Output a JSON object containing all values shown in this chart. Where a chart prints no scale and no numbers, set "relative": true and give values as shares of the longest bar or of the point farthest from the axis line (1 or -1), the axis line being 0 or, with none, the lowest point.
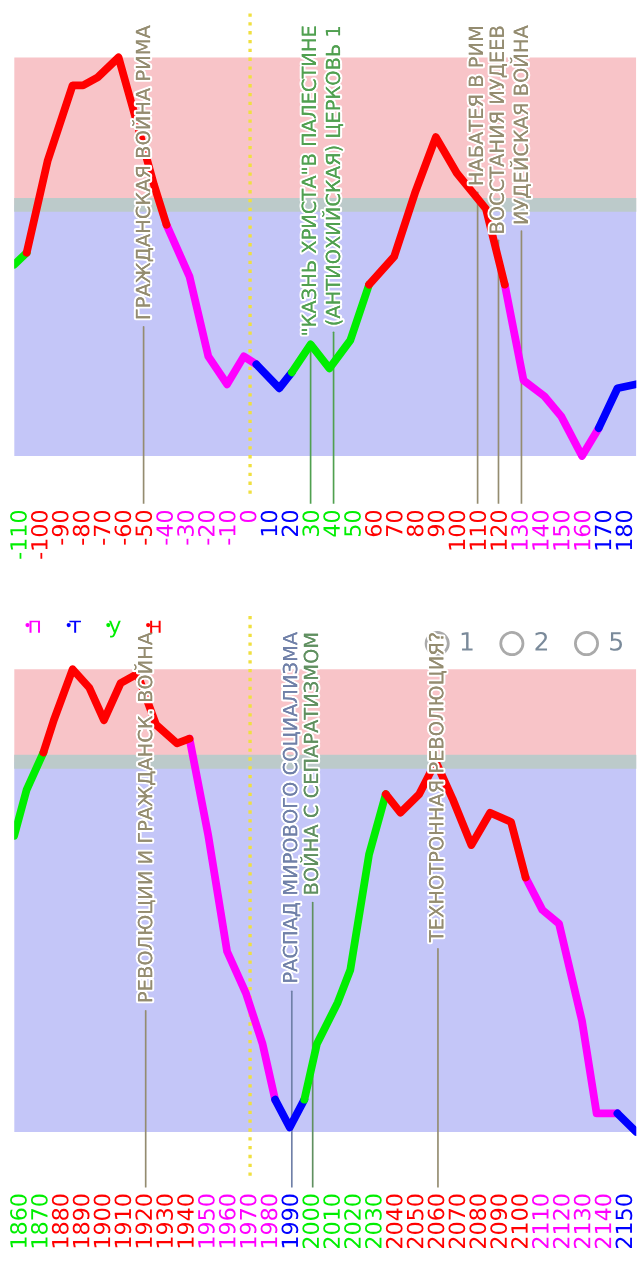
{
  "chart_data": [
    {
      "type": "line",
      "relative": true,
      "x": [
        -113,
        -107,
        -97,
        -85,
        -80,
        -73,
        -63,
        -56,
        -46,
        -40,
        -29,
        -20,
        -11,
        -3,
        3,
        14,
        20,
        29,
        38,
        48,
        57,
        69,
        79,
        89,
        99,
        113,
        122,
        131,
        141,
        149,
        159,
        167,
        176,
        185
      ],
      "xlim": [
        -113,
        185
      ],
      "xticks": [
        -110,
        -100,
        -90,
        -80,
        -70,
        -60,
        -50,
        -40,
        -30,
        -20,
        -10,
        0,
        10,
        20,
        30,
        40,
        50,
        60,
        70,
        80,
        90,
        100,
        110,
        120,
        130,
        140,
        150,
        160,
        170,
        180
      ],
      "series": [
        {
          "color": "#ff00ff",
          "values": [
            null,
            null,
            null,
            null,
            null,
            null,
            null,
            null,
            null,
            0.58,
            0.45,
            0.25,
            0.18,
            0.25,
            0.23,
            null,
            null,
            null,
            null,
            null,
            null,
            null,
            null,
            null,
            null,
            null,
            0.43,
            0.19,
            0.15,
            0.1,
            0,
            0.07,
            null,
            null
          ]
        },
        {
          "color": "#0000ff",
          "values": [
            null,
            null,
            null,
            null,
            null,
            null,
            null,
            null,
            null,
            null,
            null,
            null,
            null,
            null,
            0.23,
            0.17,
            0.21,
            null,
            null,
            null,
            null,
            null,
            null,
            null,
            null,
            null,
            null,
            null,
            null,
            null,
            null,
            0.07,
            0.17,
            0.18
          ]
        },
        {
          "color": "#00ee00",
          "values": [
            0.48,
            0.51,
            null,
            null,
            null,
            null,
            null,
            null,
            null,
            null,
            null,
            null,
            null,
            null,
            null,
            null,
            0.21,
            0.28,
            0.22,
            0.29,
            0.43,
            null,
            null,
            null,
            null,
            null,
            null,
            null,
            null,
            null,
            null,
            null,
            null,
            null
          ]
        },
        {
          "color": "#ff0000",
          "values": [
            null,
            0.51,
            0.74,
            0.93,
            0.93,
            0.95,
            1.0,
            0.87,
            0.68,
            0.58,
            null,
            null,
            null,
            null,
            null,
            null,
            null,
            null,
            null,
            null,
            0.43,
            0.5,
            0.66,
            0.8,
            0.71,
            0.62,
            0.43,
            null,
            null,
            null,
            null,
            null,
            null,
            null
          ]
        }
      ],
      "ref_lines": [
        {
          "axis": "y",
          "value": 0.63,
          "label": null,
          "color": "#bccaca"
        },
        {
          "axis": "x",
          "value": 0,
          "label": null,
          "color": "#f0e040",
          "line_style": "dotted"
        },
        {
          "axis": "x",
          "value": -51,
          "label": "ГРАЖДАНСКАЯ ВОЙНА РИМА",
          "color": "#948c70"
        },
        {
          "axis": "x",
          "value": 29,
          "label": "\"КАЗНЬ ХРИСТА\"В ПАЛЕСТИНЕ",
          "color": "#50a050"
        },
        {
          "axis": "x",
          "value": 40,
          "label": "(АНТИОХИЙСКАЯ) ЦЕРКОВЬ 1",
          "color": "#50a050"
        },
        {
          "axis": "x",
          "value": 109,
          "label": "НАБАТЕЯ В РИМ",
          "color": "#948c70"
        },
        {
          "axis": "x",
          "value": 119,
          "label": "ВОССТАНИЯ ИУДЕЕВ",
          "color": "#948c70"
        },
        {
          "axis": "x",
          "value": 130,
          "label": "ИУДЕЙСКАЯ ВОЙНА",
          "color": "#948c70"
        }
      ],
      "bands": [
        {
          "axis": "y",
          "from": 0.63,
          "to": 1,
          "color": "#f8c4c8"
        },
        {
          "axis": "y",
          "from": 0,
          "to": 0.63,
          "color": "#c4c6f8"
        }
      ],
      "grid": false,
      "legend": false
    },
    {
      "type": "line",
      "relative": true,
      "x": [
        1857,
        1863,
        1871,
        1876,
        1885,
        1893,
        1900,
        1908,
        1916,
        1925,
        1935,
        1941,
        1950,
        1959,
        1968,
        1976,
        1982,
        1989,
        1996,
        2002,
        2012,
        2018,
        2027,
        2035,
        2042,
        2051,
        2059,
        2067,
        2076,
        2085,
        2095,
        2102,
        2110,
        2118,
        2129,
        2136,
        2146,
        2155
      ],
      "xlim": [
        1857,
        2155
      ],
      "xticks": [
        1860,
        1870,
        1880,
        1890,
        1900,
        1910,
        1920,
        1930,
        1940,
        1950,
        1960,
        1970,
        1980,
        1990,
        2000,
        2010,
        2020,
        2030,
        2040,
        2050,
        2060,
        2070,
        2080,
        2090,
        2100,
        2110,
        2120,
        2130,
        2140,
        2150
      ],
      "series": [
        {
          "name": "п",
          "color": "#ff00ff",
          "values": [
            null,
            null,
            null,
            null,
            null,
            null,
            null,
            null,
            null,
            null,
            null,
            0.85,
            0.64,
            0.39,
            0.3,
            0.19,
            0.07,
            null,
            null,
            null,
            null,
            null,
            null,
            null,
            null,
            null,
            null,
            null,
            null,
            null,
            null,
            0.55,
            0.48,
            0.45,
            0.24,
            0.04,
            0.04,
            null
          ]
        },
        {
          "name": "т",
          "color": "#0000ff",
          "values": [
            null,
            null,
            null,
            null,
            null,
            null,
            null,
            null,
            null,
            null,
            null,
            null,
            null,
            null,
            null,
            null,
            0.07,
            0.01,
            0.07,
            null,
            null,
            null,
            null,
            null,
            null,
            null,
            null,
            null,
            null,
            null,
            null,
            null,
            null,
            null,
            null,
            null,
            0.04,
            0
          ]
        },
        {
          "name": "у",
          "color": "#00ee00",
          "values": [
            0.64,
            0.74,
            0.82,
            null,
            null,
            null,
            null,
            null,
            null,
            null,
            null,
            null,
            null,
            null,
            null,
            null,
            null,
            null,
            0.07,
            0.19,
            0.28,
            0.35,
            0.6,
            0.73,
            null,
            null,
            null,
            null,
            null,
            null,
            null,
            null,
            null,
            null,
            null,
            null,
            null,
            null
          ]
        },
        {
          "name": "н",
          "color": "#ff0000",
          "values": [
            null,
            null,
            0.82,
            0.89,
            1.0,
            0.96,
            0.89,
            0.97,
            0.99,
            0.88,
            0.84,
            0.85,
            null,
            null,
            null,
            null,
            null,
            null,
            null,
            null,
            null,
            null,
            null,
            0.73,
            0.69,
            0.73,
            0.8,
            0.72,
            0.62,
            0.69,
            0.67,
            0.55,
            null,
            null,
            null,
            null,
            null,
            null
          ]
        }
      ],
      "ref_lines": [
        {
          "axis": "y",
          "value": 0.8,
          "label": null,
          "color": "#bccaca"
        },
        {
          "axis": "x",
          "value": 1970,
          "label": null,
          "color": "#f0e040",
          "line_style": "dotted"
        },
        {
          "axis": "x",
          "value": 1920,
          "label": "РЕВОЛЮЦИИ И ГРАЖДАНСК. ВОЙНА",
          "color": "#948c70"
        },
        {
          "axis": "x",
          "value": 1990,
          "label": "РАСПАД МИРОВОГО СОЦИАЛИЗМА",
          "color": "#7080a8"
        },
        {
          "axis": "x",
          "value": 2000,
          "label": "ВОЙНА С СЕПАРАТИЗМОМ",
          "color": "#609060"
        },
        {
          "axis": "x",
          "value": 2060,
          "label": "ТЕХНОТРОННАЯ РЕВОЛЮЦИЯ?",
          "color": "#948c70"
        }
      ],
      "bands": [
        {
          "axis": "y",
          "from": 0.8,
          "to": 1,
          "color": "#f8c4c8"
        },
        {
          "axis": "y",
          "from": 0,
          "to": 0.8,
          "color": "#c4c6f8"
        }
      ],
      "annotations": [
        "1",
        "2",
        "5"
      ],
      "grid": false,
      "legend": "top left"
    }
  ]
}
